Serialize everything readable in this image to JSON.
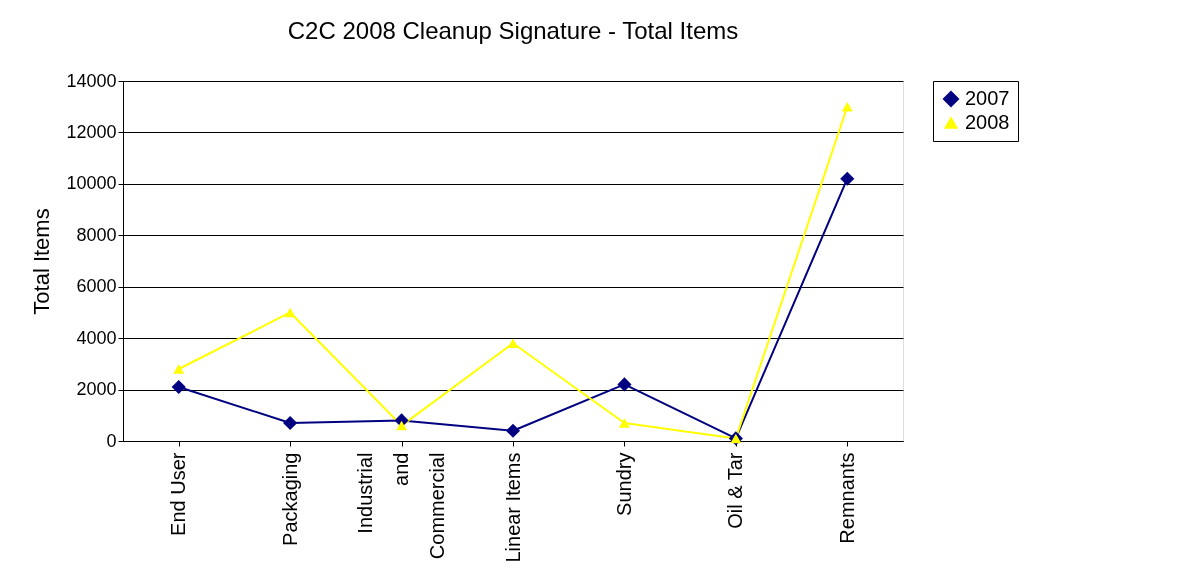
{
  "chart_data": {
    "type": "line",
    "title": "C2C 2008 Cleanup Signature - Total Items",
    "ylabel": "Total Items",
    "categories": [
      "End User",
      "Packaging",
      "Industrial and Commercial",
      "Linear Items",
      "Sundry",
      "Oil & Tar",
      "Remnants"
    ],
    "series": [
      {
        "name": "2007",
        "color": "#000080",
        "marker": "diamond",
        "values": [
          2100,
          700,
          800,
          400,
          2200,
          100,
          10200
        ]
      },
      {
        "name": "2008",
        "color": "#ffff00",
        "marker": "triangle",
        "values": [
          2800,
          5000,
          600,
          3800,
          700,
          100,
          13000
        ]
      }
    ],
    "ylim": [
      0,
      14000
    ],
    "yticks": [
      0,
      2000,
      4000,
      6000,
      8000,
      10000,
      12000,
      14000
    ],
    "grid": "y",
    "legend": "right"
  }
}
